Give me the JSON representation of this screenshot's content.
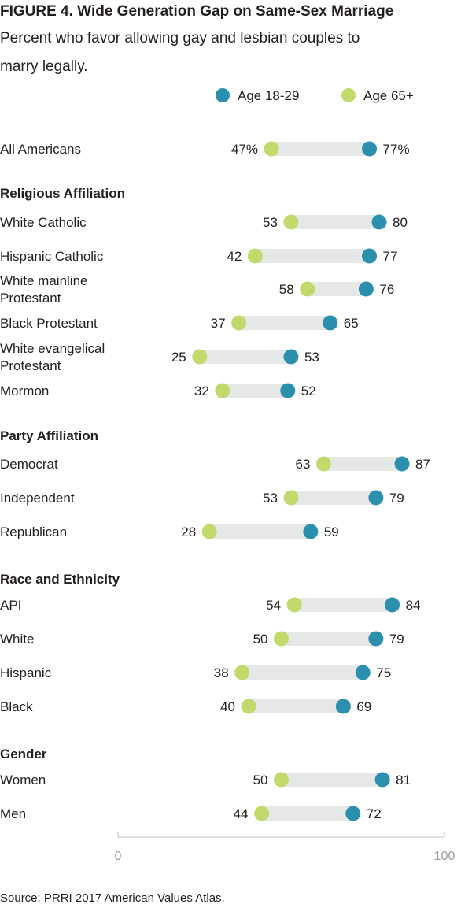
{
  "chart_data": {
    "type": "dot-range",
    "title": "FIGURE 4.  Wide Generation Gap on Same-Sex Marriage",
    "subtitle_lines": [
      "Percent who favor allowing gay and lesbian couples to",
      "marry legally."
    ],
    "source": "Source: PRRI 2017 American Values Atlas.",
    "xlim": [
      0,
      100
    ],
    "x_ticks": [
      0,
      100
    ],
    "grid": false,
    "legend_position": "top-right",
    "series": [
      {
        "key": "young",
        "name": "Age 18-29",
        "color": "#2b8fae"
      },
      {
        "key": "old",
        "name": "Age 65+",
        "color": "#c2d96c"
      }
    ],
    "bar_color": "#e6e7e7",
    "rows": [
      {
        "kind": "item",
        "label": [
          "All Americans"
        ],
        "old": 47,
        "young": 77,
        "old_text": "47%",
        "young_text": "77%"
      },
      {
        "kind": "section",
        "label": [
          "Religious Affiliation"
        ]
      },
      {
        "kind": "item",
        "label": [
          "White Catholic"
        ],
        "old": 53,
        "young": 80,
        "old_text": "53",
        "young_text": "80"
      },
      {
        "kind": "item",
        "label": [
          "Hispanic Catholic"
        ],
        "old": 42,
        "young": 77,
        "old_text": "42",
        "young_text": "77"
      },
      {
        "kind": "item",
        "label": [
          "White mainline",
          "Protestant"
        ],
        "old": 58,
        "young": 76,
        "old_text": "58",
        "young_text": "76"
      },
      {
        "kind": "item",
        "label": [
          "Black Protestant"
        ],
        "old": 37,
        "young": 65,
        "old_text": "37",
        "young_text": "65"
      },
      {
        "kind": "item",
        "label": [
          "White evangelical",
          "Protestant"
        ],
        "old": 25,
        "young": 53,
        "old_text": "25",
        "young_text": "53"
      },
      {
        "kind": "item",
        "label": [
          "Mormon"
        ],
        "old": 32,
        "young": 52,
        "old_text": "32",
        "young_text": "52"
      },
      {
        "kind": "section",
        "label": [
          "Party Affiliation"
        ]
      },
      {
        "kind": "item",
        "label": [
          "Democrat"
        ],
        "old": 63,
        "young": 87,
        "old_text": "63",
        "young_text": "87"
      },
      {
        "kind": "item",
        "label": [
          "Independent"
        ],
        "old": 53,
        "young": 79,
        "old_text": "53",
        "young_text": "79"
      },
      {
        "kind": "item",
        "label": [
          "Republican"
        ],
        "old": 28,
        "young": 59,
        "old_text": "28",
        "young_text": "59"
      },
      {
        "kind": "section",
        "label": [
          "Race and Ethnicity"
        ]
      },
      {
        "kind": "item",
        "label": [
          "API"
        ],
        "old": 54,
        "young": 84,
        "old_text": "54",
        "young_text": "84"
      },
      {
        "kind": "item",
        "label": [
          "White"
        ],
        "old": 50,
        "young": 79,
        "old_text": "50",
        "young_text": "79"
      },
      {
        "kind": "item",
        "label": [
          "Hispanic"
        ],
        "old": 38,
        "young": 75,
        "old_text": "38",
        "young_text": "75"
      },
      {
        "kind": "item",
        "label": [
          "Black"
        ],
        "old": 40,
        "young": 69,
        "old_text": "40",
        "young_text": "69"
      },
      {
        "kind": "section",
        "label": [
          "Gender"
        ]
      },
      {
        "kind": "item",
        "label": [
          "Women"
        ],
        "old": 50,
        "young": 81,
        "old_text": "50",
        "young_text": "81"
      },
      {
        "kind": "item",
        "label": [
          "Men"
        ],
        "old": 44,
        "young": 72,
        "old_text": "44",
        "young_text": "72"
      }
    ]
  }
}
